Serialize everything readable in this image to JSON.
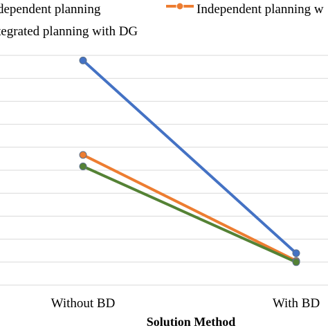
{
  "chart_data": {
    "type": "line",
    "title": "",
    "xlabel": "Solution Method",
    "ylabel": "",
    "categories": [
      "Without BD",
      "With BD"
    ],
    "ylim": [
      0,
      9
    ],
    "grid": true,
    "legend_position": "top",
    "series": [
      {
        "name": "Independent planning",
        "color": "#4472C4",
        "values": [
          8.8,
          1.25
        ]
      },
      {
        "name": "Independent planning w",
        "color": "#ED7D31",
        "values": [
          5.1,
          0.95
        ]
      },
      {
        "name": "Integrated planning with DG",
        "color": "#548235",
        "values": [
          4.65,
          0.9
        ]
      }
    ],
    "legend_labels": [
      "dependent planning",
      "Independent planning w",
      "tegrated planning with DG"
    ]
  }
}
